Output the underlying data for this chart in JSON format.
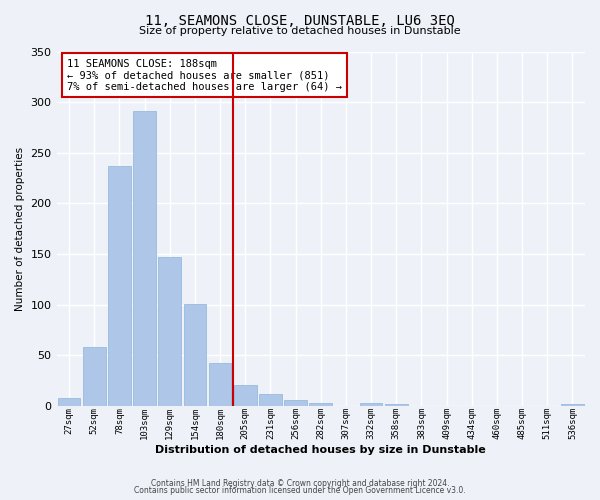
{
  "title": "11, SEAMONS CLOSE, DUNSTABLE, LU6 3EQ",
  "subtitle": "Size of property relative to detached houses in Dunstable",
  "xlabel": "Distribution of detached houses by size in Dunstable",
  "ylabel": "Number of detached properties",
  "bar_labels": [
    "27sqm",
    "52sqm",
    "78sqm",
    "103sqm",
    "129sqm",
    "154sqm",
    "180sqm",
    "205sqm",
    "231sqm",
    "256sqm",
    "282sqm",
    "307sqm",
    "332sqm",
    "358sqm",
    "383sqm",
    "409sqm",
    "434sqm",
    "460sqm",
    "485sqm",
    "511sqm",
    "536sqm"
  ],
  "bar_values": [
    8,
    58,
    237,
    291,
    147,
    101,
    42,
    21,
    12,
    6,
    3,
    0,
    3,
    2,
    0,
    0,
    0,
    0,
    0,
    0,
    2
  ],
  "bar_color": "#aec6e8",
  "bar_edge_color": "#8eb4d8",
  "vline_x_index": 6.5,
  "vline_color": "#cc0000",
  "annotation_title": "11 SEAMONS CLOSE: 188sqm",
  "annotation_line1": "← 93% of detached houses are smaller (851)",
  "annotation_line2": "7% of semi-detached houses are larger (64) →",
  "annotation_box_color": "#ffffff",
  "annotation_box_edge": "#cc0000",
  "ylim": [
    0,
    350
  ],
  "yticks": [
    0,
    50,
    100,
    150,
    200,
    250,
    300,
    350
  ],
  "footer1": "Contains HM Land Registry data © Crown copyright and database right 2024.",
  "footer2": "Contains public sector information licensed under the Open Government Licence v3.0.",
  "background_color": "#eef2f8",
  "grid_color": "#ffffff"
}
